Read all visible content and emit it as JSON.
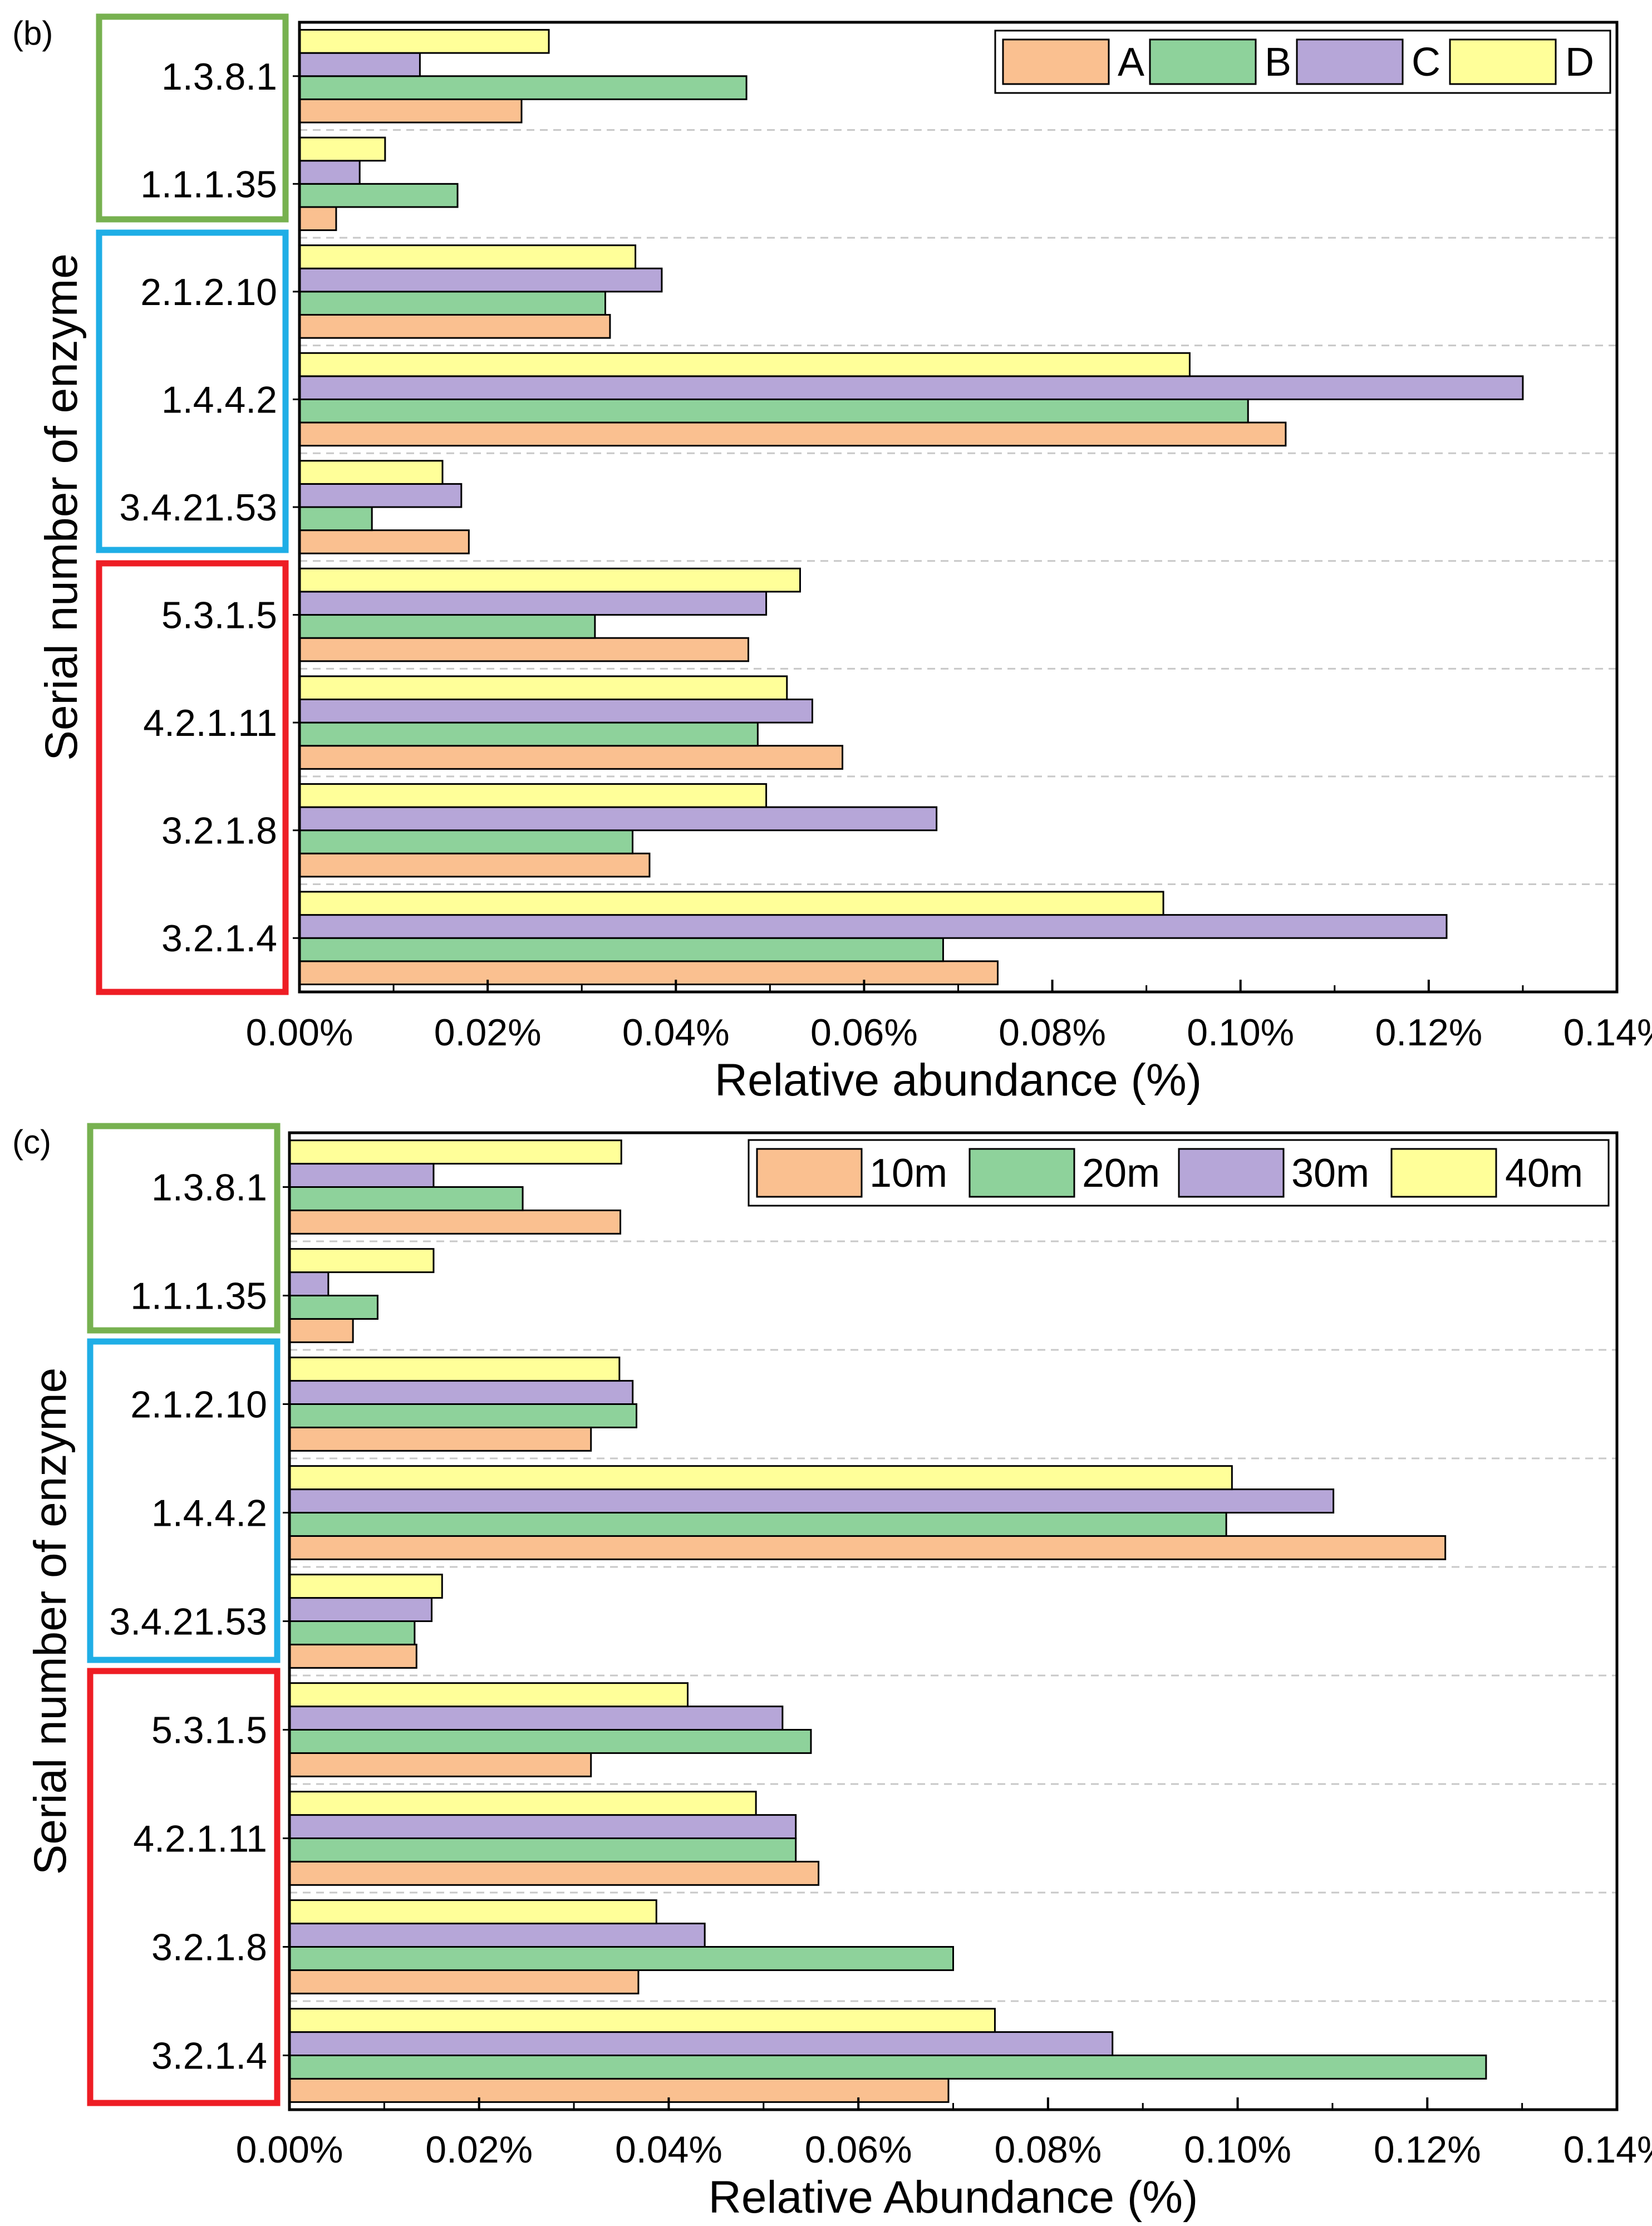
{
  "figure": {
    "panels": [
      {
        "panel_label": "(b)",
        "chart_data": {
          "type": "bar",
          "orientation": "horizontal",
          "title": "",
          "xlabel": "Relative abundance (%)",
          "ylabel": "Serial number of enzyme",
          "xlim": [
            0,
            0.14
          ],
          "x_ticks": [
            "0.00%",
            "0.02%",
            "0.04%",
            "0.06%",
            "0.08%",
            "0.10%",
            "0.12%",
            "0.14%"
          ],
          "categories": [
            "1.3.8.1",
            "1.1.1.35",
            "2.1.2.10",
            "1.4.4.2",
            "3.4.21.53",
            "5.3.1.5",
            "4.2.1.11",
            "3.2.1.8",
            "3.2.1.4"
          ],
          "series": [
            {
              "name": "A",
              "color": "#FAC090",
              "values": [
                0.0236,
                0.0039,
                0.033,
                0.1048,
                0.018,
                0.0477,
                0.0577,
                0.0372,
                0.0742
              ]
            },
            {
              "name": "B",
              "color": "#8ED29B",
              "values": [
                0.0475,
                0.0168,
                0.0325,
                0.1008,
                0.0077,
                0.0314,
                0.0487,
                0.0354,
                0.0684
              ]
            },
            {
              "name": "C",
              "color": "#B6A6D8",
              "values": [
                0.0128,
                0.0064,
                0.0385,
                0.13,
                0.0172,
                0.0496,
                0.0545,
                0.0677,
                0.1219
              ]
            },
            {
              "name": "D",
              "color": "#FFFF99",
              "values": [
                0.0265,
                0.0091,
                0.0357,
                0.0946,
                0.0152,
                0.0532,
                0.0518,
                0.0496,
                0.0918
              ]
            }
          ],
          "groups": [
            {
              "color": "#77B150",
              "categories": [
                "1.3.8.1",
                "1.1.1.35"
              ]
            },
            {
              "color": "#1FAEE6",
              "categories": [
                "2.1.2.10",
                "1.4.4.2",
                "3.4.21.53"
              ]
            },
            {
              "color": "#EE1D24",
              "categories": [
                "5.3.1.5",
                "4.2.1.11",
                "3.2.1.8",
                "3.2.1.4"
              ]
            }
          ],
          "legend_position": "top-right",
          "grid": "horizontal dashed"
        }
      },
      {
        "panel_label": "(c)",
        "chart_data": {
          "type": "bar",
          "orientation": "horizontal",
          "title": "",
          "xlabel": "Relative Abundance (%)",
          "ylabel": "Serial number of enzyme",
          "xlim": [
            0,
            0.14
          ],
          "x_ticks": [
            "0.00%",
            "0.02%",
            "0.04%",
            "0.06%",
            "0.08%",
            "0.10%",
            "0.12%",
            "0.14%"
          ],
          "categories": [
            "1.3.8.1",
            "1.1.1.35",
            "2.1.2.10",
            "1.4.4.2",
            "3.4.21.53",
            "5.3.1.5",
            "4.2.1.11",
            "3.2.1.8",
            "3.2.1.4"
          ],
          "series": [
            {
              "name": "10m",
              "color": "#FAC090",
              "values": [
                0.0349,
                0.0067,
                0.0318,
                0.1219,
                0.0134,
                0.0318,
                0.0558,
                0.0368,
                0.0695
              ]
            },
            {
              "name": "20m",
              "color": "#8ED29B",
              "values": [
                0.0246,
                0.0093,
                0.0366,
                0.0988,
                0.0132,
                0.055,
                0.0534,
                0.07,
                0.1262
              ]
            },
            {
              "name": "30m",
              "color": "#B6A6D8",
              "values": [
                0.0152,
                0.0041,
                0.0362,
                0.1101,
                0.015,
                0.052,
                0.0534,
                0.0438,
                0.0868
              ]
            },
            {
              "name": "40m",
              "color": "#FFFF99",
              "values": [
                0.035,
                0.0152,
                0.0348,
                0.0994,
                0.0161,
                0.042,
                0.0492,
                0.0387,
                0.0744
              ]
            }
          ],
          "groups": [
            {
              "color": "#77B150",
              "categories": [
                "1.3.8.1",
                "1.1.1.35"
              ]
            },
            {
              "color": "#1FAEE6",
              "categories": [
                "2.1.2.10",
                "1.4.4.2",
                "3.4.21.53"
              ]
            },
            {
              "color": "#EE1D24",
              "categories": [
                "5.3.1.5",
                "4.2.1.11",
                "3.2.1.8",
                "3.2.1.4"
              ]
            }
          ],
          "legend_position": "top-right",
          "grid": "horizontal dashed"
        }
      }
    ]
  }
}
